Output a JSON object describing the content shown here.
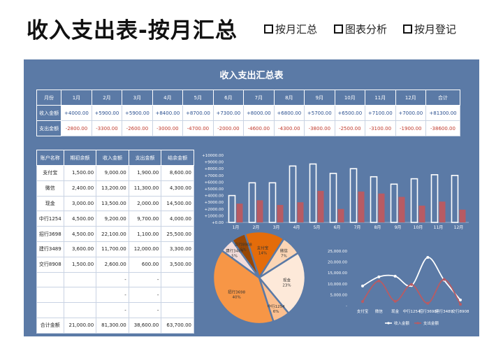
{
  "header": {
    "title": "收入支出表-按月汇总",
    "nav": [
      "按月汇总",
      "图表分析",
      "按月登记"
    ]
  },
  "panel": {
    "title": "收入支出汇总表"
  },
  "monthly": {
    "headers": [
      "月份",
      "1月",
      "2月",
      "3月",
      "4月",
      "5月",
      "6月",
      "7月",
      "8月",
      "9月",
      "10月",
      "11月",
      "12月",
      "合计"
    ],
    "income": {
      "label": "收入金额",
      "values": [
        "+4000.00",
        "+5900.00",
        "+5900.00",
        "+8400.00",
        "+8700.00",
        "+7300.00",
        "+8000.00",
        "+6800.00",
        "+5700.00",
        "+6500.00",
        "+7100.00",
        "+7000.00",
        "+81300.00"
      ]
    },
    "expense": {
      "label": "支出金额",
      "values": [
        "-2800.00",
        "-3300.00",
        "-2600.00",
        "-3000.00",
        "-4700.00",
        "-2000.00",
        "-4600.00",
        "-4300.00",
        "-3800.00",
        "-2500.00",
        "-3100.00",
        "-1900.00",
        "-38600.00"
      ]
    }
  },
  "accounts": {
    "headers": [
      "账户名称",
      "期初余额",
      "收入金额",
      "支出金额",
      "结余金额"
    ],
    "rows": [
      [
        "支付宝",
        "1,500.00",
        "9,000.00",
        "1,900.00",
        "8,600.00"
      ],
      [
        "微信",
        "2,400.00",
        "13,200.00",
        "11,300.00",
        "4,300.00"
      ],
      [
        "现金",
        "3,000.00",
        "13,500.00",
        "2,000.00",
        "14,500.00"
      ],
      [
        "中行1254",
        "4,500.00",
        "9,200.00",
        "9,700.00",
        "4,000.00"
      ],
      [
        "招行3698",
        "4,500.00",
        "22,100.00",
        "1,100.00",
        "25,500.00"
      ],
      [
        "建行3489",
        "3,600.00",
        "11,700.00",
        "12,000.00",
        "3,300.00"
      ],
      [
        "交行8908",
        "1,500.00",
        "2,600.00",
        "600.00",
        "3,500.00"
      ],
      [
        "",
        "",
        "-",
        "-",
        ""
      ],
      [
        "",
        "",
        "-",
        "-",
        ""
      ],
      [
        "",
        "",
        "-",
        "-",
        ""
      ]
    ],
    "total": [
      "合计金额",
      "21,000.00",
      "81,300.00",
      "38,600.00",
      "63,700.00"
    ]
  },
  "chart_data": [
    {
      "type": "bar",
      "categories": [
        "1月",
        "2月",
        "3月",
        "4月",
        "5月",
        "6月",
        "7月",
        "8月",
        "9月",
        "10月",
        "11月",
        "12月"
      ],
      "series": [
        {
          "values": [
            4000,
            5900,
            5900,
            8400,
            8700,
            7300,
            8000,
            6800,
            5700,
            6500,
            7100,
            7000
          ]
        },
        {
          "values": [
            2800,
            3300,
            2600,
            3000,
            4700,
            2000,
            4600,
            4300,
            3800,
            2500,
            3100,
            1900
          ]
        }
      ],
      "yticks": [
        "+0.00",
        "+1000.00",
        "+2000.00",
        "+3000.00",
        "+4000.00",
        "+5000.00",
        "+6000.00",
        "+7000.00",
        "+8000.00",
        "+9000.00",
        "+10000.00"
      ],
      "ylim": [
        0,
        10000
      ],
      "colors": {
        "income": "#ffffff",
        "expense": "#b85b63"
      }
    },
    {
      "type": "pie",
      "slices": [
        {
          "label": "支付宝",
          "pct": "14%",
          "value": 14,
          "color": "#e46c0a"
        },
        {
          "label": "微信",
          "pct": "7%",
          "value": 7,
          "color": "#fbd5b5"
        },
        {
          "label": "现金",
          "pct": "23%",
          "value": 23,
          "color": "#fde9d9"
        },
        {
          "label": "中行1254",
          "pct": "6%",
          "value": 6,
          "color": "#fbbf8f"
        },
        {
          "label": "招行3698",
          "pct": "40%",
          "value": 40,
          "color": "#f79646"
        },
        {
          "label": "建行3489",
          "pct": "5%",
          "value": 5,
          "color": "#f2dcdb"
        },
        {
          "label": "交行8908",
          "pct": "5%",
          "value": 5,
          "color": "#974706"
        }
      ]
    },
    {
      "type": "line",
      "categories": [
        "支付宝",
        "微信",
        "现金",
        "中行1254",
        "招行3698",
        "建行3489",
        "交行8908"
      ],
      "series": [
        {
          "name": "收入金额",
          "values": [
            9000,
            13200,
            13500,
            9200,
            22100,
            11700,
            2600
          ],
          "color": "#ffffff"
        },
        {
          "name": "支出金额",
          "values": [
            1900,
            11300,
            2000,
            9700,
            1100,
            12000,
            600
          ],
          "color": "#b85b63"
        }
      ],
      "yticks": [
        "-",
        "5,000.00",
        "10,000.00",
        "15,000.00",
        "20,000.00",
        "25,000.00"
      ],
      "ylim": [
        0,
        25000
      ]
    }
  ]
}
